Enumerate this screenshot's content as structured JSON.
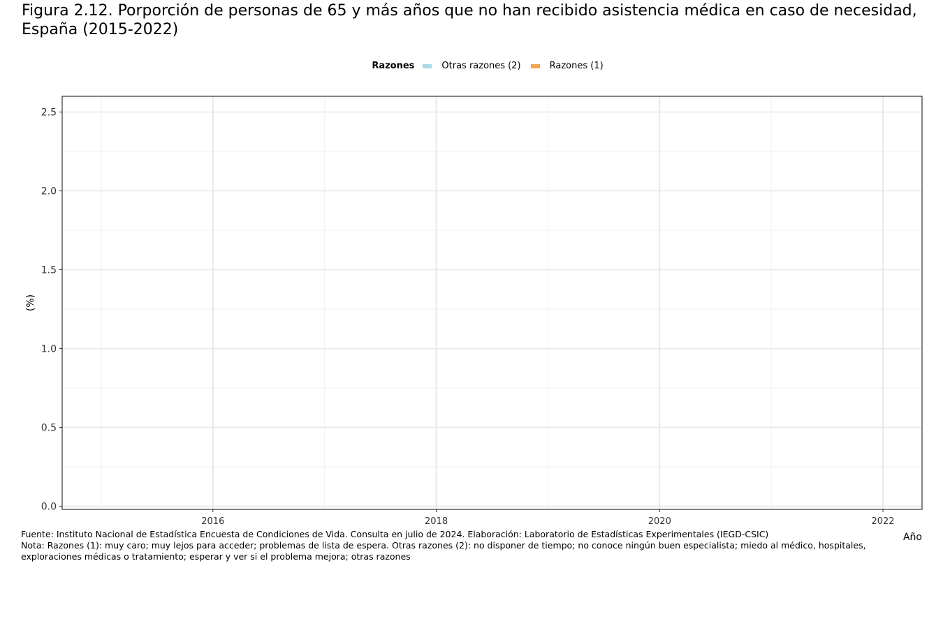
{
  "title": "Figura 2.12. Porporción de personas de 65 y más años que no han recibido asistencia médica en caso de necesidad, España (2015-2022)",
  "legend": {
    "title": "Razones",
    "items": [
      {
        "label": "Otras razones (2)",
        "color": "#ADD8E6"
      },
      {
        "label": "Razones (1)",
        "color": "#F4A64A"
      }
    ]
  },
  "chart_data": {
    "type": "bar",
    "xlabel": "Año",
    "ylabel": "(%)",
    "xlim": [
      2014.65,
      2022.35
    ],
    "ylim": [
      0,
      2.6
    ],
    "x_ticks": [
      2016,
      2018,
      2020,
      2022
    ],
    "y_ticks": [
      0.0,
      0.5,
      1.0,
      1.5,
      2.0,
      2.5
    ],
    "y_tick_labels": [
      "0.0",
      "0.5",
      "1.0",
      "1.5",
      "2.0",
      "2.5"
    ],
    "grid": true,
    "legend_position": "top",
    "series": [
      {
        "name": "Otras razones (2)",
        "color": "#ADD8E6",
        "values": []
      },
      {
        "name": "Razones (1)",
        "color": "#F4A64A",
        "values": []
      }
    ]
  },
  "notes": {
    "source": "Fuente: Instituto Nacional de Estadística Encuesta de Condiciones de Vida. Consulta en julio de 2024. Elaboración: Laboratorio de Estadísticas Experimentales (IEGD-CSIC)",
    "note": "Nota: Razones (1): muy caro; muy lejos para acceder; problemas de lista de espera. Otras razones (2): no disponer de tiempo; no conoce ningún buen especialista; miedo al médico, hospitales, exploraciones médicas o tratamiento; esperar y ver si el problema mejora; otras razones"
  }
}
